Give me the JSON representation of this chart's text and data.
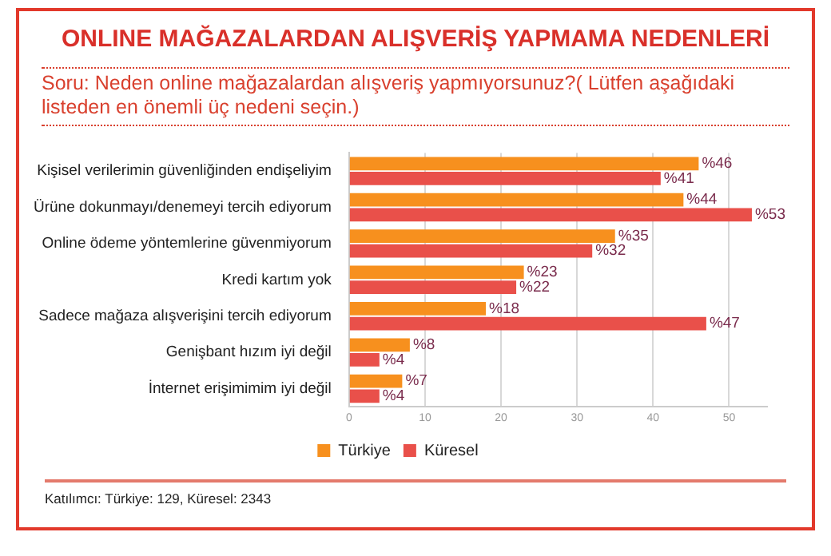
{
  "chart_data": {
    "type": "bar",
    "orientation": "horizontal",
    "title": "ONLINE MAĞAZALARDAN ALIŞVERİŞ YAPMAMA NEDENLERİ",
    "subtitle": "Soru: Neden online mağazalardan alışveriş yapmıyorsunuz?( Lütfen aşağıdaki listeden en önemli üç nedeni seçin.)",
    "categories": [
      "Kişisel verilerimin güvenliğinden endişeliyim",
      "Ürüne dokunmayı/denemeyi tercih ediyorum",
      "Online ödeme yöntemlerine güvenmiyorum",
      "Kredi kartım yok",
      "Sadece mağaza alışverişini tercih ediyorum",
      "Genişbant hızım iyi değil",
      "İnternet erişimimim iyi değil"
    ],
    "series": [
      {
        "name": "Türkiye",
        "color": "#f7901e",
        "values": [
          46,
          44,
          35,
          23,
          18,
          8,
          7
        ],
        "value_labels": [
          "%46",
          "%44",
          "%35",
          "%23",
          "%18",
          "%8",
          "%7"
        ]
      },
      {
        "name": "Küresel",
        "color": "#e9504a",
        "values": [
          41,
          53,
          32,
          22,
          47,
          4,
          4
        ],
        "value_labels": [
          "%41",
          "%53",
          "%32",
          "%22",
          "%47",
          "%4",
          "%4"
        ]
      }
    ],
    "xlim": [
      0,
      55
    ],
    "xticks": [
      0,
      10,
      20,
      30,
      40,
      50
    ],
    "grid": "x",
    "legend": "bottom left",
    "annotations": [
      "Katılımcı: Türkiye: 129, Küresel: 2343"
    ]
  }
}
